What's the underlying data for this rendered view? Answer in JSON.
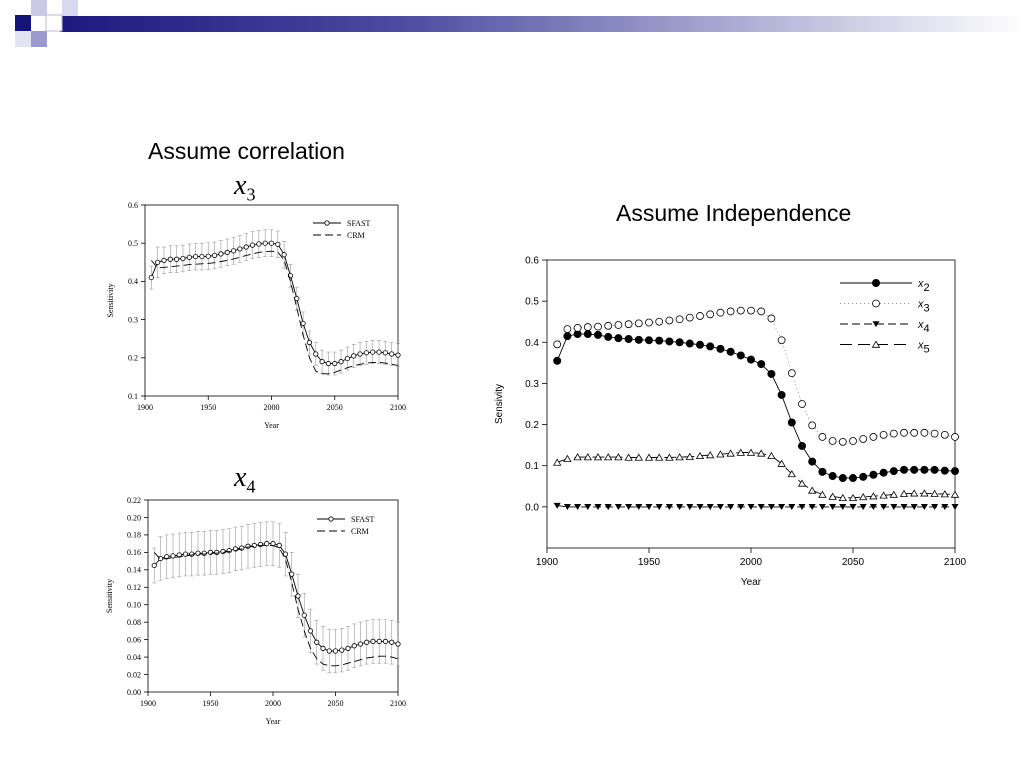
{
  "slide": {
    "title_left": "Assume correlation",
    "title_right": "Assume Independence",
    "var_top": "x",
    "var_top_sub": "3",
    "var_bottom": "x",
    "var_bottom_sub": "4"
  },
  "chart_data": [
    {
      "type": "line",
      "variable": "x3",
      "xlabel": "Year",
      "ylabel": "Sensitivity",
      "xlim": [
        1900,
        2100
      ],
      "ylim": [
        0.1,
        0.6
      ],
      "xticks": [
        1900,
        1950,
        2000,
        2050,
        2100
      ],
      "yticks": [
        0.1,
        0.2,
        0.3,
        0.4,
        0.5,
        0.6
      ],
      "ytick_labels": [
        "0.1",
        "0.2",
        "0.3",
        "0.4",
        "0.5",
        "0.6"
      ],
      "legend_position": "top-right",
      "error_bars": true,
      "x": [
        1905,
        1910,
        1915,
        1920,
        1925,
        1930,
        1935,
        1940,
        1945,
        1950,
        1955,
        1960,
        1965,
        1970,
        1975,
        1980,
        1985,
        1990,
        1995,
        2000,
        2005,
        2010,
        2015,
        2020,
        2025,
        2030,
        2035,
        2040,
        2045,
        2050,
        2055,
        2060,
        2065,
        2070,
        2075,
        2080,
        2085,
        2090,
        2095,
        2100
      ],
      "series": [
        {
          "name": "SFAST",
          "marker": "open-circle",
          "line": "solid",
          "values": [
            0.41,
            0.45,
            0.455,
            0.458,
            0.458,
            0.46,
            0.463,
            0.465,
            0.465,
            0.466,
            0.468,
            0.472,
            0.476,
            0.48,
            0.485,
            0.49,
            0.495,
            0.498,
            0.5,
            0.5,
            0.497,
            0.47,
            0.415,
            0.355,
            0.29,
            0.24,
            0.21,
            0.19,
            0.185,
            0.185,
            0.19,
            0.198,
            0.205,
            0.21,
            0.213,
            0.215,
            0.215,
            0.213,
            0.21,
            0.207
          ],
          "error": [
            0.03,
            0.04,
            0.035,
            0.035,
            0.035,
            0.035,
            0.035,
            0.035,
            0.035,
            0.035,
            0.035,
            0.035,
            0.035,
            0.035,
            0.035,
            0.035,
            0.035,
            0.035,
            0.035,
            0.035,
            0.035,
            0.035,
            0.03,
            0.03,
            0.03,
            0.03,
            0.03,
            0.03,
            0.03,
            0.03,
            0.03,
            0.03,
            0.03,
            0.03,
            0.03,
            0.03,
            0.03,
            0.03,
            0.03,
            0.03
          ]
        },
        {
          "name": "CRM",
          "line": "dashed",
          "values": [
            0.455,
            0.435,
            0.437,
            0.438,
            0.44,
            0.442,
            0.444,
            0.445,
            0.446,
            0.447,
            0.449,
            0.452,
            0.455,
            0.459,
            0.463,
            0.468,
            0.472,
            0.476,
            0.478,
            0.479,
            0.477,
            0.455,
            0.4,
            0.33,
            0.26,
            0.2,
            0.165,
            0.158,
            0.158,
            0.162,
            0.168,
            0.174,
            0.179,
            0.183,
            0.186,
            0.188,
            0.188,
            0.186,
            0.183,
            0.18
          ]
        }
      ]
    },
    {
      "type": "line",
      "variable": "x4",
      "xlabel": "Year",
      "ylabel": "Sensitivity",
      "xlim": [
        1900,
        2100
      ],
      "ylim": [
        0,
        0.22
      ],
      "xticks": [
        1900,
        1950,
        2000,
        2050,
        2100
      ],
      "yticks": [
        0,
        0.02,
        0.04,
        0.06,
        0.08,
        0.1,
        0.12,
        0.14,
        0.16,
        0.18,
        0.2,
        0.22
      ],
      "ytick_labels": [
        "0.00",
        "0.02",
        "0.04",
        "0.06",
        "0.08",
        "0.10",
        "0.12",
        "0.14",
        "0.16",
        "0.18",
        "0.20",
        "0.22"
      ],
      "legend_position": "top-right",
      "error_bars": true,
      "x": [
        1905,
        1910,
        1915,
        1920,
        1925,
        1930,
        1935,
        1940,
        1945,
        1950,
        1955,
        1960,
        1965,
        1970,
        1975,
        1980,
        1985,
        1990,
        1995,
        2000,
        2005,
        2010,
        2015,
        2020,
        2025,
        2030,
        2035,
        2040,
        2045,
        2050,
        2055,
        2060,
        2065,
        2070,
        2075,
        2080,
        2085,
        2090,
        2095,
        2100
      ],
      "series": [
        {
          "name": "SFAST",
          "marker": "open-circle",
          "line": "solid",
          "values": [
            0.145,
            0.153,
            0.155,
            0.156,
            0.157,
            0.158,
            0.158,
            0.159,
            0.159,
            0.16,
            0.16,
            0.161,
            0.162,
            0.164,
            0.165,
            0.167,
            0.168,
            0.169,
            0.17,
            0.17,
            0.168,
            0.158,
            0.135,
            0.11,
            0.088,
            0.07,
            0.057,
            0.05,
            0.047,
            0.047,
            0.048,
            0.05,
            0.053,
            0.055,
            0.057,
            0.058,
            0.058,
            0.058,
            0.057,
            0.055
          ],
          "error": [
            0.02,
            0.025,
            0.025,
            0.025,
            0.025,
            0.025,
            0.025,
            0.025,
            0.025,
            0.025,
            0.025,
            0.025,
            0.025,
            0.025,
            0.025,
            0.025,
            0.025,
            0.025,
            0.025,
            0.025,
            0.025,
            0.025,
            0.025,
            0.025,
            0.025,
            0.025,
            0.025,
            0.025,
            0.025,
            0.025,
            0.025,
            0.025,
            0.025,
            0.025,
            0.025,
            0.025,
            0.025,
            0.025,
            0.025,
            0.025
          ]
        },
        {
          "name": "CRM",
          "line": "dashed",
          "values": [
            0.16,
            0.152,
            0.153,
            0.154,
            0.155,
            0.156,
            0.157,
            0.158,
            0.158,
            0.159,
            0.159,
            0.16,
            0.161,
            0.162,
            0.164,
            0.166,
            0.167,
            0.168,
            0.168,
            0.168,
            0.165,
            0.152,
            0.125,
            0.095,
            0.07,
            0.05,
            0.038,
            0.032,
            0.03,
            0.03,
            0.031,
            0.033,
            0.035,
            0.037,
            0.039,
            0.04,
            0.041,
            0.041,
            0.04,
            0.038
          ]
        }
      ]
    },
    {
      "type": "scatter",
      "variable": "all",
      "xlabel": "Year",
      "ylabel": "Sensivity",
      "xlim": [
        1900,
        2100
      ],
      "ylim": [
        -0.1,
        0.6
      ],
      "xticks": [
        1900,
        1950,
        2000,
        2050,
        2100
      ],
      "yticks": [
        0.0,
        0.1,
        0.2,
        0.3,
        0.4,
        0.5,
        0.6
      ],
      "ytick_labels": [
        "0.0",
        "0.1",
        "0.2",
        "0.3",
        "0.4",
        "0.5",
        "0.6"
      ],
      "legend_position": "top-right",
      "x": [
        1905,
        1910,
        1915,
        1920,
        1925,
        1930,
        1935,
        1940,
        1945,
        1950,
        1955,
        1960,
        1965,
        1970,
        1975,
        1980,
        1985,
        1990,
        1995,
        2000,
        2005,
        2010,
        2015,
        2020,
        2025,
        2030,
        2035,
        2040,
        2045,
        2050,
        2055,
        2060,
        2065,
        2070,
        2075,
        2080,
        2085,
        2090,
        2095,
        2100
      ],
      "series": [
        {
          "name": "x",
          "name_sub": "2",
          "marker": "filled-circle",
          "line": "solid",
          "values": [
            0.355,
            0.415,
            0.42,
            0.42,
            0.418,
            0.413,
            0.41,
            0.408,
            0.406,
            0.405,
            0.404,
            0.402,
            0.4,
            0.397,
            0.394,
            0.39,
            0.384,
            0.377,
            0.368,
            0.358,
            0.347,
            0.323,
            0.272,
            0.205,
            0.148,
            0.11,
            0.085,
            0.075,
            0.07,
            0.07,
            0.073,
            0.078,
            0.083,
            0.087,
            0.09,
            0.09,
            0.09,
            0.09,
            0.088,
            0.087
          ]
        },
        {
          "name": "x",
          "name_sub": "3",
          "marker": "open-circle",
          "line": "dotted",
          "values": [
            0.395,
            0.432,
            0.435,
            0.437,
            0.438,
            0.44,
            0.442,
            0.444,
            0.446,
            0.448,
            0.45,
            0.453,
            0.456,
            0.46,
            0.464,
            0.468,
            0.472,
            0.475,
            0.477,
            0.477,
            0.475,
            0.458,
            0.405,
            0.325,
            0.25,
            0.198,
            0.17,
            0.16,
            0.158,
            0.16,
            0.165,
            0.17,
            0.175,
            0.178,
            0.18,
            0.18,
            0.18,
            0.178,
            0.175,
            0.17
          ]
        },
        {
          "name": "x",
          "name_sub": "4",
          "marker": "filled-triangle-down",
          "line": "dashed",
          "values": [
            0.003,
            0.0,
            0.0,
            0.0,
            0.0,
            0.0,
            0.0,
            0.0,
            0.0,
            0.0,
            0.0,
            0.0,
            0.0,
            0.0,
            0.0,
            0.0,
            0.0,
            0.0,
            0.0,
            0.0,
            0.0,
            0.0,
            0.0,
            0.0,
            0.0,
            0.0,
            0.0,
            0.0,
            0.0,
            0.0,
            0.0,
            0.0,
            0.0,
            0.0,
            0.0,
            0.0,
            0.0,
            0.0,
            0.0,
            0.0
          ]
        },
        {
          "name": "x",
          "name_sub": "5",
          "marker": "open-triangle-up",
          "line": "long-dash",
          "values": [
            0.108,
            0.117,
            0.121,
            0.121,
            0.121,
            0.121,
            0.121,
            0.12,
            0.12,
            0.12,
            0.12,
            0.12,
            0.121,
            0.122,
            0.124,
            0.126,
            0.128,
            0.13,
            0.132,
            0.132,
            0.13,
            0.124,
            0.105,
            0.08,
            0.057,
            0.04,
            0.03,
            0.025,
            0.022,
            0.022,
            0.024,
            0.026,
            0.028,
            0.03,
            0.032,
            0.033,
            0.033,
            0.032,
            0.031,
            0.03
          ]
        }
      ]
    }
  ]
}
